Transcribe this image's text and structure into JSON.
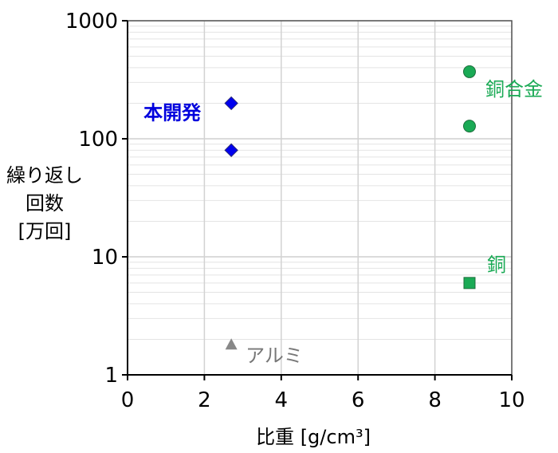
{
  "chart_data": {
    "type": "scatter",
    "xlabel": "比重 [g/cm³]",
    "ylabel": [
      "繰り返し",
      "回数",
      "[万回]"
    ],
    "xlim": [
      0,
      10
    ],
    "ylim": [
      1,
      1000
    ],
    "yscale": "log",
    "grid": true,
    "x_ticks": [
      "0",
      "2",
      "4",
      "6",
      "8",
      "10"
    ],
    "y_ticks": [
      "1",
      "10",
      "100",
      "1000"
    ],
    "series": [
      {
        "name": "本開発",
        "marker": "diamond",
        "color": "#0000ee",
        "label_color": "#0000dd",
        "label_bold": true,
        "points": [
          [
            2.7,
            200
          ],
          [
            2.7,
            80
          ]
        ]
      },
      {
        "name": "銅合金",
        "marker": "circle",
        "color": "#1aaa55",
        "label_color": "#1aaa55",
        "label_bold": false,
        "points": [
          [
            8.9,
            370
          ],
          [
            8.9,
            128
          ]
        ]
      },
      {
        "name": "銅",
        "marker": "square",
        "color": "#1aaa55",
        "label_color": "#1aaa55",
        "label_bold": false,
        "points": [
          [
            8.9,
            6
          ]
        ]
      },
      {
        "name": "アルミ",
        "marker": "triangle",
        "color": "#888888",
        "label_color": "#777777",
        "label_bold": false,
        "points": [
          [
            2.7,
            1.8
          ]
        ]
      }
    ]
  }
}
